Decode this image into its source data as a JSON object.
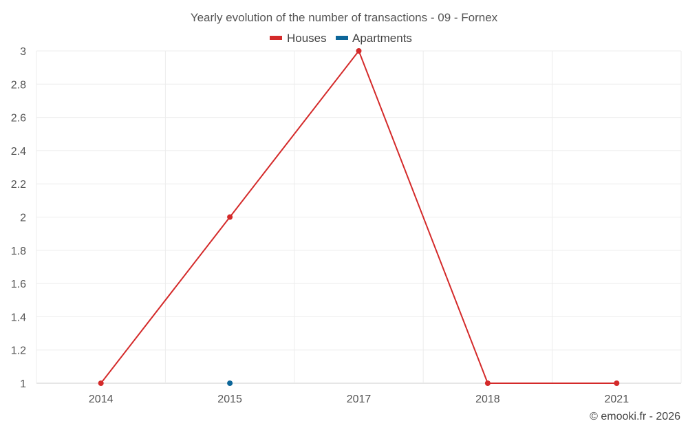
{
  "chart_data": {
    "type": "line",
    "title": "Yearly evolution of the number of transactions - 09 - Fornex",
    "categories": [
      "2014",
      "2015",
      "2017",
      "2018",
      "2021"
    ],
    "ylim": [
      1,
      3
    ],
    "yticks": [
      1,
      1.2,
      1.4,
      1.6,
      1.8,
      2,
      2.2,
      2.4,
      2.6,
      2.8,
      3
    ],
    "ytick_labels": [
      "1",
      "1.2",
      "1.4",
      "1.6",
      "1.8",
      "2",
      "2.2",
      "2.4",
      "2.6",
      "2.8",
      "3"
    ],
    "grid": true,
    "legend_position": "top-center",
    "series": [
      {
        "name": "Houses",
        "color": "#d42a2a",
        "values": [
          1,
          2,
          3,
          1,
          1
        ]
      },
      {
        "name": "Apartments",
        "color": "#0d6699",
        "values": [
          null,
          1,
          null,
          null,
          null
        ]
      }
    ]
  },
  "credit": "© emooki.fr - 2026"
}
